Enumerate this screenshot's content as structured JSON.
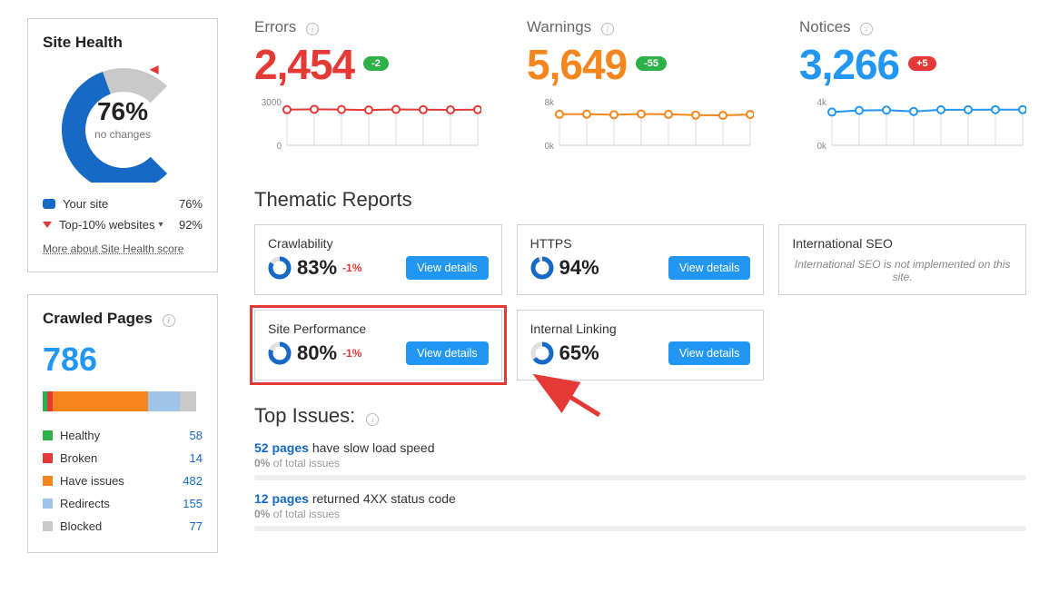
{
  "colors": {
    "primary_blue": "#1769c6",
    "link_blue": "#2196f3",
    "error_red": "#e53935",
    "warn_orange": "#f5861e",
    "notice_blue": "#2196f3",
    "green": "#2db24a",
    "grey": "#c9c9c9",
    "light_blue": "#9fc3e9",
    "delta_green": "#2db24a",
    "delta_red": "#e53935"
  },
  "site_health": {
    "title": "Site Health",
    "value_pct": 76,
    "value_label": "76%",
    "sub": "no changes",
    "donut_colors": {
      "fill": "#1769c6",
      "track": "#c9c9c9"
    },
    "marker_color": "#e53935",
    "legend": [
      {
        "kind": "swatch",
        "color": "#1769c6",
        "label": "Your site",
        "value": "76%"
      },
      {
        "kind": "tri",
        "color": "#e53935",
        "label": "Top-10% websites",
        "has_chevron": true,
        "value": "92%"
      }
    ],
    "more_link": "More about Site Health score"
  },
  "crawled": {
    "title": "Crawled Pages",
    "total": "786",
    "total_color": "#2196f3",
    "segments": [
      {
        "label": "Healthy",
        "count": 58,
        "color": "#2db24a",
        "width_pct": 3
      },
      {
        "label": "Broken",
        "count": 14,
        "color": "#e53935",
        "width_pct": 3
      },
      {
        "label": "Have issues",
        "count": 482,
        "color": "#f5861e",
        "width_pct": 60
      },
      {
        "label": "Redirects",
        "count": 155,
        "color": "#9fc3e9",
        "width_pct": 20
      },
      {
        "label": "Blocked",
        "count": 77,
        "color": "#c9c9c9",
        "width_pct": 10
      }
    ]
  },
  "stats": [
    {
      "key": "errors",
      "title": "Errors",
      "value": "2,454",
      "color": "#e53935",
      "delta": {
        "text": "-2",
        "bg": "#2db24a"
      },
      "chart": {
        "type": "line",
        "color": "#e53935",
        "ylim": [
          0,
          3000
        ],
        "yticks": [
          "3000",
          "0"
        ],
        "points": [
          2450,
          2480,
          2460,
          2430,
          2470,
          2450,
          2440,
          2454
        ]
      }
    },
    {
      "key": "warnings",
      "title": "Warnings",
      "value": "5,649",
      "color": "#f5861e",
      "delta": {
        "text": "-55",
        "bg": "#2db24a"
      },
      "chart": {
        "type": "line",
        "color": "#f5861e",
        "ylim": [
          0,
          8000
        ],
        "yticks": [
          "8k",
          "0k"
        ],
        "points": [
          5700,
          5720,
          5600,
          5750,
          5680,
          5550,
          5500,
          5649
        ]
      }
    },
    {
      "key": "notices",
      "title": "Notices",
      "value": "3,266",
      "color": "#2196f3",
      "delta": {
        "text": "+5",
        "bg": "#e53935"
      },
      "chart": {
        "type": "line",
        "color": "#2196f3",
        "ylim": [
          0,
          4000
        ],
        "yticks": [
          "4k",
          "0k"
        ],
        "points": [
          3050,
          3200,
          3230,
          3100,
          3260,
          3260,
          3270,
          3266
        ]
      }
    }
  ],
  "thematic": {
    "title": "Thematic Reports",
    "view_label": "View details",
    "cards": [
      {
        "title": "Crawlability",
        "pct": 83,
        "delta": "-1%",
        "color": "#1769c6"
      },
      {
        "title": "HTTPS",
        "pct": 94,
        "delta": "",
        "color": "#1769c6"
      },
      {
        "title": "International SEO",
        "empty": true,
        "empty_text": "International SEO is not implemented on this site."
      },
      {
        "title": "Site Performance",
        "pct": 80,
        "delta": "-1%",
        "color": "#1769c6",
        "highlight": true
      },
      {
        "title": "Internal Linking",
        "pct": 65,
        "delta": "",
        "color": "#1769c6"
      }
    ]
  },
  "top_issues": {
    "title": "Top Issues:",
    "items": [
      {
        "count": "52 pages",
        "text": " have slow load speed",
        "sub_pct": "0%",
        "sub_suffix": " of total issues"
      },
      {
        "count": "12 pages",
        "text": " returned 4XX status code",
        "sub_pct": "0%",
        "sub_suffix": " of total issues"
      }
    ]
  }
}
